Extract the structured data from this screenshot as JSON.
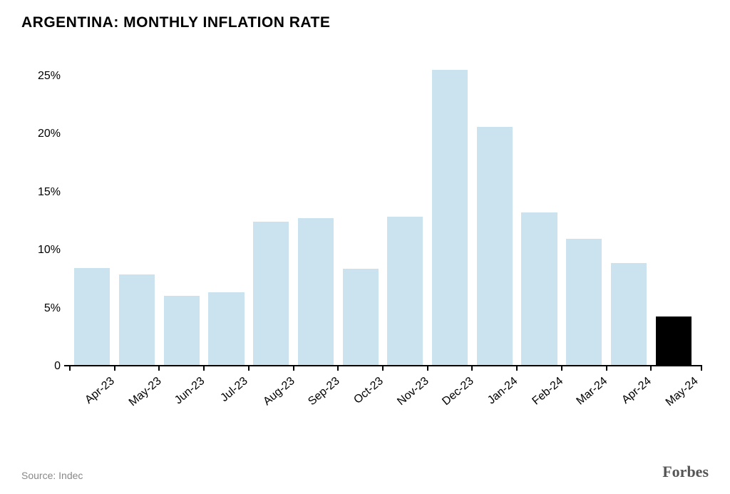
{
  "chart": {
    "title": "ARGENTINA: MONTHLY INFLATION RATE",
    "title_fontsize": 21,
    "type": "bar",
    "categories": [
      "Apr-23",
      "May-23",
      "Jun-23",
      "Jul-23",
      "Aug-23",
      "Sep-23",
      "Oct-23",
      "Nov-23",
      "Dec-23",
      "Jan-24",
      "Feb-24",
      "Mar-24",
      "Apr-24",
      "May-24"
    ],
    "values": [
      8.4,
      7.8,
      6.0,
      6.3,
      12.4,
      12.7,
      8.3,
      12.8,
      25.5,
      20.6,
      13.2,
      10.9,
      8.8,
      4.2
    ],
    "bar_colors": [
      "#cbe3ee",
      "#cbe3ee",
      "#cbe3ee",
      "#cbe3ee",
      "#cbe3ee",
      "#cbe3ee",
      "#cbe3ee",
      "#cbe3ee",
      "#cbe3ee",
      "#cbe3ee",
      "#cbe3ee",
      "#cbe3ee",
      "#cbe3ee",
      "#000000"
    ],
    "y_ticks": [
      0,
      5,
      10,
      15,
      20,
      25
    ],
    "y_tick_labels": [
      "0",
      "5%",
      "10%",
      "15%",
      "20%",
      "25%"
    ],
    "ylim_max": 27,
    "axis_label_fontsize": 16,
    "x_label_fontsize": 16,
    "background_color": "#ffffff",
    "axis_color": "#000000",
    "bar_width": 0.8
  },
  "footer": {
    "source": "Source: Indec",
    "source_fontsize": 14,
    "source_color": "#888888",
    "brand": "Forbes",
    "brand_fontsize": 22,
    "brand_color": "#555555"
  }
}
